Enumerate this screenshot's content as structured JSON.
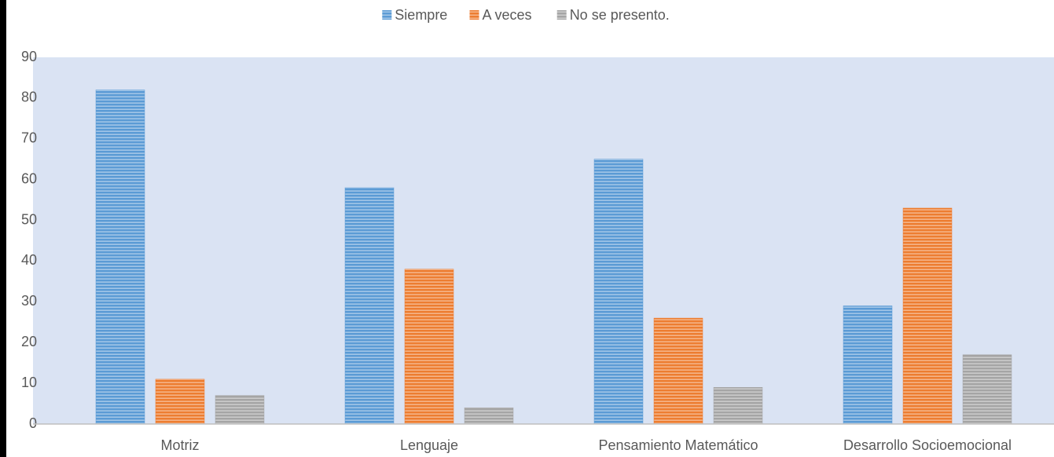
{
  "chart_data": {
    "type": "bar",
    "categories": [
      "Motriz",
      "Lenguaje",
      "Pensamiento Matemático",
      "Desarrollo Socioemocional"
    ],
    "series": [
      {
        "name": "Siempre",
        "color": "#5b9bd5",
        "values": [
          82,
          58,
          65,
          29
        ]
      },
      {
        "name": "A veces",
        "color": "#ed7d31",
        "values": [
          11,
          38,
          26,
          53
        ]
      },
      {
        "name": "No se presento.",
        "color": "#a5a5a5",
        "values": [
          7,
          4,
          9,
          17
        ]
      }
    ],
    "ylim": [
      0,
      90
    ],
    "yticks": [
      0,
      10,
      20,
      30,
      40,
      50,
      60,
      70,
      80,
      90
    ],
    "grid": false,
    "legend": "top"
  }
}
